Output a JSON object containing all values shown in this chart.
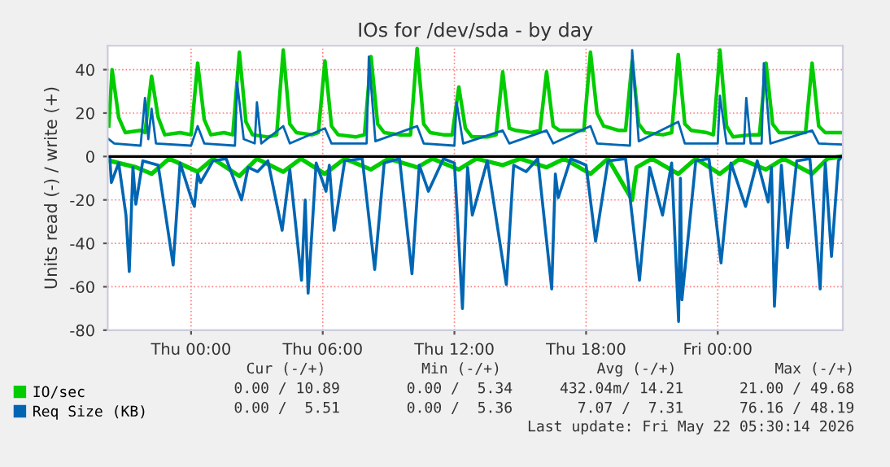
{
  "chart_data": {
    "type": "line",
    "title": "IOs for /dev/sda - by day",
    "ylabel": "Units read (-) / write (+)",
    "xlim": [
      "2026-05-20T20:12",
      "2026-05-22T05:42"
    ],
    "xticks": [
      {
        "value": "2026-05-21T00:00",
        "label": "Thu 00:00"
      },
      {
        "value": "2026-05-21T06:00",
        "label": "Thu 06:00"
      },
      {
        "value": "2026-05-21T12:00",
        "label": "Thu 12:00"
      },
      {
        "value": "2026-05-21T18:00",
        "label": "Thu 18:00"
      },
      {
        "value": "2026-05-22T00:00",
        "label": "Fri 00:00"
      }
    ],
    "ylim": [
      -80,
      51
    ],
    "yticks": [
      -80,
      -60,
      -40,
      -20,
      0,
      20,
      40
    ],
    "grid": true,
    "legend": "bottom left",
    "line_style": "solid",
    "marker": "none",
    "ref_lines": [
      {
        "axis": "y",
        "value": 0,
        "color": "#000000"
      }
    ],
    "series": [
      {
        "name": "IO/sec",
        "color": "#00cc00",
        "x": [
          "2026-05-20T20:18",
          "2026-05-20T21:30",
          "2026-05-20T22:12",
          "2026-05-20T23:00",
          "2026-05-21T00:18",
          "2026-05-21T01:00",
          "2026-05-21T02:12",
          "2026-05-21T03:00",
          "2026-05-21T04:12",
          "2026-05-21T05:00",
          "2026-05-21T06:06",
          "2026-05-21T07:00",
          "2026-05-21T08:12",
          "2026-05-21T09:00",
          "2026-05-21T10:18",
          "2026-05-21T11:00",
          "2026-05-21T12:12",
          "2026-05-21T13:00",
          "2026-05-21T14:12",
          "2026-05-21T15:00",
          "2026-05-21T16:12",
          "2026-05-21T17:00",
          "2026-05-21T18:12",
          "2026-05-21T19:00",
          "2026-05-21T20:06",
          "2026-05-21T20:18",
          "2026-05-21T21:00",
          "2026-05-21T22:12",
          "2026-05-21T23:00",
          "2026-05-22T00:06",
          "2026-05-22T01:00",
          "2026-05-22T02:12",
          "2026-05-22T03:00",
          "2026-05-22T04:18",
          "2026-05-22T05:00",
          "2026-05-22T05:39"
        ],
        "values": [
          -2,
          -5,
          -8,
          -1,
          -7,
          -1,
          -9,
          -1,
          -7,
          -1,
          -8,
          -1,
          -6,
          -1,
          -5,
          -1,
          -6,
          -1,
          -4,
          -1,
          -5,
          -1,
          -8,
          -1,
          -20,
          -5,
          -1,
          -8,
          -1,
          -8,
          -1,
          -6,
          -1,
          -8,
          -1,
          0
        ]
      },
      {
        "color": "#00cc00",
        "x": [
          "2026-05-20T20:15",
          "2026-05-20T20:24",
          "2026-05-20T20:42",
          "2026-05-20T21:00",
          "2026-05-20T21:42",
          "2026-05-20T21:54",
          "2026-05-20T22:12",
          "2026-05-20T22:30",
          "2026-05-20T22:48",
          "2026-05-20T23:30",
          "2026-05-21T00:00",
          "2026-05-21T00:18",
          "2026-05-21T00:36",
          "2026-05-21T00:54",
          "2026-05-21T01:30",
          "2026-05-21T01:54",
          "2026-05-21T02:12",
          "2026-05-21T02:30",
          "2026-05-21T02:48",
          "2026-05-21T03:30",
          "2026-05-21T03:54",
          "2026-05-21T04:12",
          "2026-05-21T04:30",
          "2026-05-21T04:48",
          "2026-05-21T05:30",
          "2026-05-21T05:48",
          "2026-05-21T06:06",
          "2026-05-21T06:24",
          "2026-05-21T06:42",
          "2026-05-21T07:30",
          "2026-05-21T07:54",
          "2026-05-21T08:12",
          "2026-05-21T08:30",
          "2026-05-21T08:48",
          "2026-05-21T09:30",
          "2026-05-21T10:00",
          "2026-05-21T10:18",
          "2026-05-21T10:36",
          "2026-05-21T10:54",
          "2026-05-21T11:30",
          "2026-05-21T11:54",
          "2026-05-21T12:12",
          "2026-05-21T12:30",
          "2026-05-21T12:48",
          "2026-05-21T13:30",
          "2026-05-21T13:54",
          "2026-05-21T14:12",
          "2026-05-21T14:30",
          "2026-05-21T14:48",
          "2026-05-21T15:30",
          "2026-05-21T15:54",
          "2026-05-21T16:12",
          "2026-05-21T16:30",
          "2026-05-21T16:48",
          "2026-05-21T17:30",
          "2026-05-21T17:54",
          "2026-05-21T18:12",
          "2026-05-21T18:30",
          "2026-05-21T18:48",
          "2026-05-21T19:30",
          "2026-05-21T19:48",
          "2026-05-21T20:06",
          "2026-05-21T20:24",
          "2026-05-21T20:42",
          "2026-05-21T21:30",
          "2026-05-21T21:54",
          "2026-05-21T22:12",
          "2026-05-21T22:30",
          "2026-05-21T22:48",
          "2026-05-21T23:30",
          "2026-05-21T23:48",
          "2026-05-22T00:06",
          "2026-05-22T00:24",
          "2026-05-22T00:42",
          "2026-05-22T01:30",
          "2026-05-22T01:54",
          "2026-05-22T02:12",
          "2026-05-22T02:30",
          "2026-05-22T02:48",
          "2026-05-22T03:30",
          "2026-05-22T04:00",
          "2026-05-22T04:18",
          "2026-05-22T04:36",
          "2026-05-22T04:54",
          "2026-05-22T05:39"
        ],
        "values": [
          14,
          40,
          18,
          11,
          12,
          11,
          37,
          18,
          10,
          11,
          10,
          43,
          17,
          10,
          11,
          10,
          48,
          16,
          10,
          9,
          10,
          49,
          15,
          11,
          10,
          11,
          44,
          14,
          10,
          9,
          10,
          46,
          15,
          11,
          10,
          10,
          49.7,
          15,
          11,
          10,
          10,
          32,
          13,
          9,
          9,
          10,
          39,
          13,
          12,
          11,
          12,
          39,
          14,
          12,
          12,
          12,
          48,
          20,
          14,
          12,
          12,
          44,
          15,
          11,
          10,
          11,
          47,
          15,
          12,
          11,
          10,
          49,
          14,
          9,
          10,
          10,
          43,
          15,
          11,
          11,
          11,
          43,
          14,
          11,
          11
        ]
      },
      {
        "name": "Req Size (KB)",
        "color": "#0066b3",
        "x": [
          "2026-05-20T20:18",
          "2026-05-20T20:22",
          "2026-05-20T20:42",
          "2026-05-20T21:02",
          "2026-05-20T21:11",
          "2026-05-20T21:21",
          "2026-05-20T21:29",
          "2026-05-20T21:48",
          "2026-05-20T22:30",
          "2026-05-20T23:11",
          "2026-05-20T23:30",
          "2026-05-21T00:00",
          "2026-05-21T00:09",
          "2026-05-21T00:18",
          "2026-05-21T00:26",
          "2026-05-21T01:00",
          "2026-05-21T01:36",
          "2026-05-21T02:18",
          "2026-05-21T02:36",
          "2026-05-21T03:02",
          "2026-05-21T03:30",
          "2026-05-21T04:09",
          "2026-05-21T04:30",
          "2026-05-21T05:02",
          "2026-05-21T05:12",
          "2026-05-21T05:20",
          "2026-05-21T05:42",
          "2026-05-21T06:09",
          "2026-05-21T06:18",
          "2026-05-21T06:31",
          "2026-05-21T07:00",
          "2026-05-21T07:48",
          "2026-05-21T08:22",
          "2026-05-21T08:48",
          "2026-05-21T09:30",
          "2026-05-21T10:04",
          "2026-05-21T10:24",
          "2026-05-21T10:49",
          "2026-05-21T11:30",
          "2026-05-21T12:00",
          "2026-05-21T12:22",
          "2026-05-21T12:36",
          "2026-05-21T12:49",
          "2026-05-21T13:30",
          "2026-05-21T14:22",
          "2026-05-21T14:42",
          "2026-05-21T15:16",
          "2026-05-21T15:48",
          "2026-05-21T16:26",
          "2026-05-21T16:36",
          "2026-05-21T16:44",
          "2026-05-21T17:18",
          "2026-05-21T18:00",
          "2026-05-21T18:26",
          "2026-05-21T19:00",
          "2026-05-21T19:48",
          "2026-05-21T20:26",
          "2026-05-21T20:54",
          "2026-05-21T21:29",
          "2026-05-21T21:54",
          "2026-05-21T22:13",
          "2026-05-21T22:18",
          "2026-05-21T22:22",
          "2026-05-21T23:00",
          "2026-05-21T23:36",
          "2026-05-22T00:09",
          "2026-05-22T00:36",
          "2026-05-22T01:16",
          "2026-05-22T01:48",
          "2026-05-22T02:18",
          "2026-05-22T02:27",
          "2026-05-22T02:35",
          "2026-05-22T02:54",
          "2026-05-22T03:11",
          "2026-05-22T03:36",
          "2026-05-22T04:12",
          "2026-05-22T04:40",
          "2026-05-22T04:54",
          "2026-05-22T05:11",
          "2026-05-22T05:30",
          "2026-05-22T05:39"
        ],
        "values": [
          -1,
          -12,
          -3,
          -27,
          -53,
          -5,
          -22,
          -2,
          -4,
          -50,
          -3,
          -19,
          -23,
          -8,
          -12,
          -2,
          -1,
          -20,
          -5,
          -7,
          -2,
          -34,
          -6,
          -57,
          -20,
          -63,
          -3,
          -16,
          -4,
          -34,
          -2,
          -1,
          -52,
          -3,
          -1,
          -54,
          -4,
          -16,
          -1,
          -3,
          -70,
          -5,
          -27,
          -2,
          -59,
          -4,
          -7,
          -1,
          -61,
          -8,
          -19,
          -1,
          -4,
          -39,
          -2,
          -1,
          -57,
          -5,
          -27,
          -3,
          -76,
          -10,
          -66,
          -2,
          -1,
          -49,
          -3,
          -23,
          -2,
          -21,
          -5,
          -69,
          -4,
          -42,
          -2,
          -1,
          -61,
          -3,
          -46,
          -2,
          0
        ]
      },
      {
        "color": "#0066b3",
        "x": [
          "2026-05-20T20:15",
          "2026-05-20T20:30",
          "2026-05-20T21:42",
          "2026-05-20T21:54",
          "2026-05-20T22:03",
          "2026-05-20T22:12",
          "2026-05-20T22:24",
          "2026-05-21T00:00",
          "2026-05-21T00:18",
          "2026-05-21T00:36",
          "2026-05-21T02:00",
          "2026-05-21T02:06",
          "2026-05-21T02:24",
          "2026-05-21T02:54",
          "2026-05-21T03:00",
          "2026-05-21T03:12",
          "2026-05-21T04:12",
          "2026-05-21T04:30",
          "2026-05-21T06:06",
          "2026-05-21T06:24",
          "2026-05-21T08:00",
          "2026-05-21T08:06",
          "2026-05-21T08:24",
          "2026-05-21T10:18",
          "2026-05-21T10:36",
          "2026-05-21T12:00",
          "2026-05-21T12:06",
          "2026-05-21T12:24",
          "2026-05-21T14:12",
          "2026-05-21T14:30",
          "2026-05-21T16:12",
          "2026-05-21T16:30",
          "2026-05-21T18:12",
          "2026-05-21T18:30",
          "2026-05-21T20:00",
          "2026-05-21T20:06",
          "2026-05-21T20:24",
          "2026-05-21T22:12",
          "2026-05-21T22:30",
          "2026-05-22T00:00",
          "2026-05-22T00:06",
          "2026-05-22T00:24",
          "2026-05-22T01:12",
          "2026-05-22T01:18",
          "2026-05-22T01:30",
          "2026-05-22T02:00",
          "2026-05-22T02:06",
          "2026-05-22T02:24",
          "2026-05-22T04:18",
          "2026-05-22T04:36",
          "2026-05-22T05:39"
        ],
        "values": [
          8,
          6,
          5,
          27,
          8,
          22,
          6,
          5,
          14,
          6,
          5,
          34,
          8,
          6,
          25,
          6,
          14,
          6,
          13,
          6,
          6,
          46,
          7,
          14,
          6,
          5,
          25,
          6,
          12,
          6,
          12,
          6,
          14,
          6,
          5,
          49,
          7,
          16,
          6,
          6,
          28,
          6,
          6,
          27,
          6,
          6,
          43,
          6,
          12,
          6,
          5.5
        ]
      }
    ],
    "annotations": [
      "Cur (-/+)",
      "Min (-/+)",
      "Avg (-/+)",
      "Max (-/+)",
      "0.00 / 10.89",
      "0.00 /  5.34",
      "432.04m/ 14.21",
      "21.00 / 49.68",
      "0.00 /  5.51",
      "0.00 /  5.36",
      "7.07 /  7.31",
      "76.16 / 48.19",
      "Last update: Fri May 22 05:30:14 2026"
    ]
  }
}
